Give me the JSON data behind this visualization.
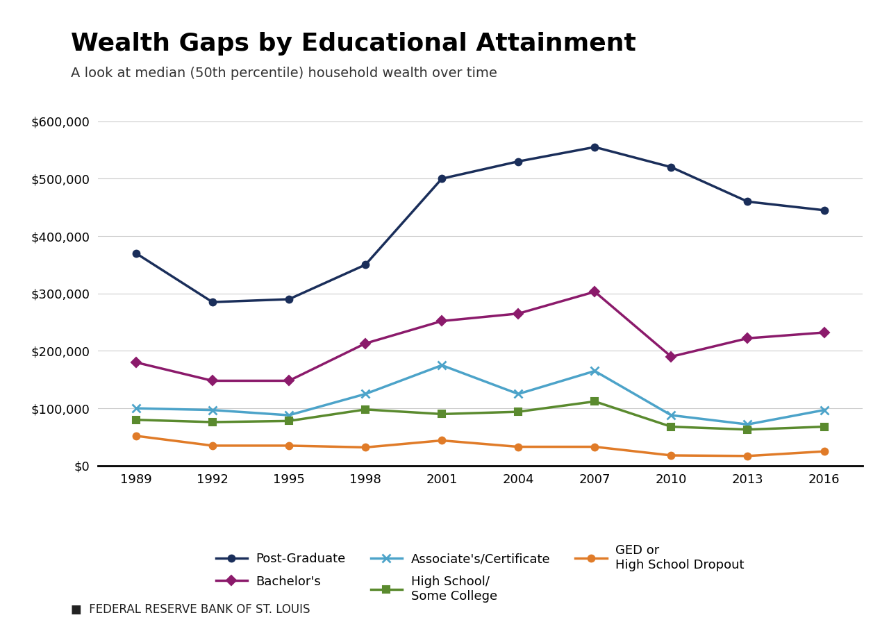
{
  "title": "Wealth Gaps by Educational Attainment",
  "subtitle": "A look at median (50th percentile) household wealth over time",
  "footer": "FEDERAL RESERVE BANK OF ST. LOUIS",
  "years": [
    1989,
    1992,
    1995,
    1998,
    2001,
    2004,
    2007,
    2010,
    2013,
    2016
  ],
  "series": [
    {
      "label": "Post-Graduate",
      "color": "#1a2e5a",
      "marker": "o",
      "markersize": 7,
      "linewidth": 2.5,
      "values": [
        370000,
        285000,
        290000,
        350000,
        500000,
        530000,
        555000,
        520000,
        460000,
        445000
      ]
    },
    {
      "label": "Bachelor's",
      "color": "#8b1a6b",
      "marker": "D",
      "markersize": 7,
      "linewidth": 2.5,
      "values": [
        180000,
        148000,
        148000,
        213000,
        252000,
        265000,
        303000,
        190000,
        222000,
        232000
      ]
    },
    {
      "label": "Associate's/Certificate",
      "color": "#4ca3c9",
      "marker": "x",
      "markersize": 9,
      "linewidth": 2.5,
      "values": [
        100000,
        97000,
        88000,
        125000,
        175000,
        125000,
        165000,
        88000,
        72000,
        97000
      ]
    },
    {
      "label": "High School/\nSome College",
      "color": "#5a8a2e",
      "marker": "s",
      "markersize": 7,
      "linewidth": 2.5,
      "values": [
        80000,
        76000,
        78000,
        98000,
        90000,
        94000,
        112000,
        68000,
        63000,
        68000
      ]
    },
    {
      "label": "GED or\nHigh School Dropout",
      "color": "#e07b28",
      "marker": "o",
      "markersize": 7,
      "linewidth": 2.5,
      "values": [
        52000,
        35000,
        35000,
        32000,
        44000,
        33000,
        33000,
        18000,
        17000,
        25000
      ]
    }
  ],
  "ylim": [
    0,
    650000
  ],
  "yticks": [
    0,
    100000,
    200000,
    300000,
    400000,
    500000,
    600000
  ],
  "ytick_labels": [
    "$0",
    "$100,000",
    "$200,000",
    "$300,000",
    "$400,000",
    "$500,000",
    "$600,000"
  ],
  "background_color": "#ffffff",
  "grid_color": "#cccccc",
  "title_fontsize": 26,
  "subtitle_fontsize": 14,
  "tick_fontsize": 13,
  "legend_fontsize": 13,
  "footer_fontsize": 12
}
